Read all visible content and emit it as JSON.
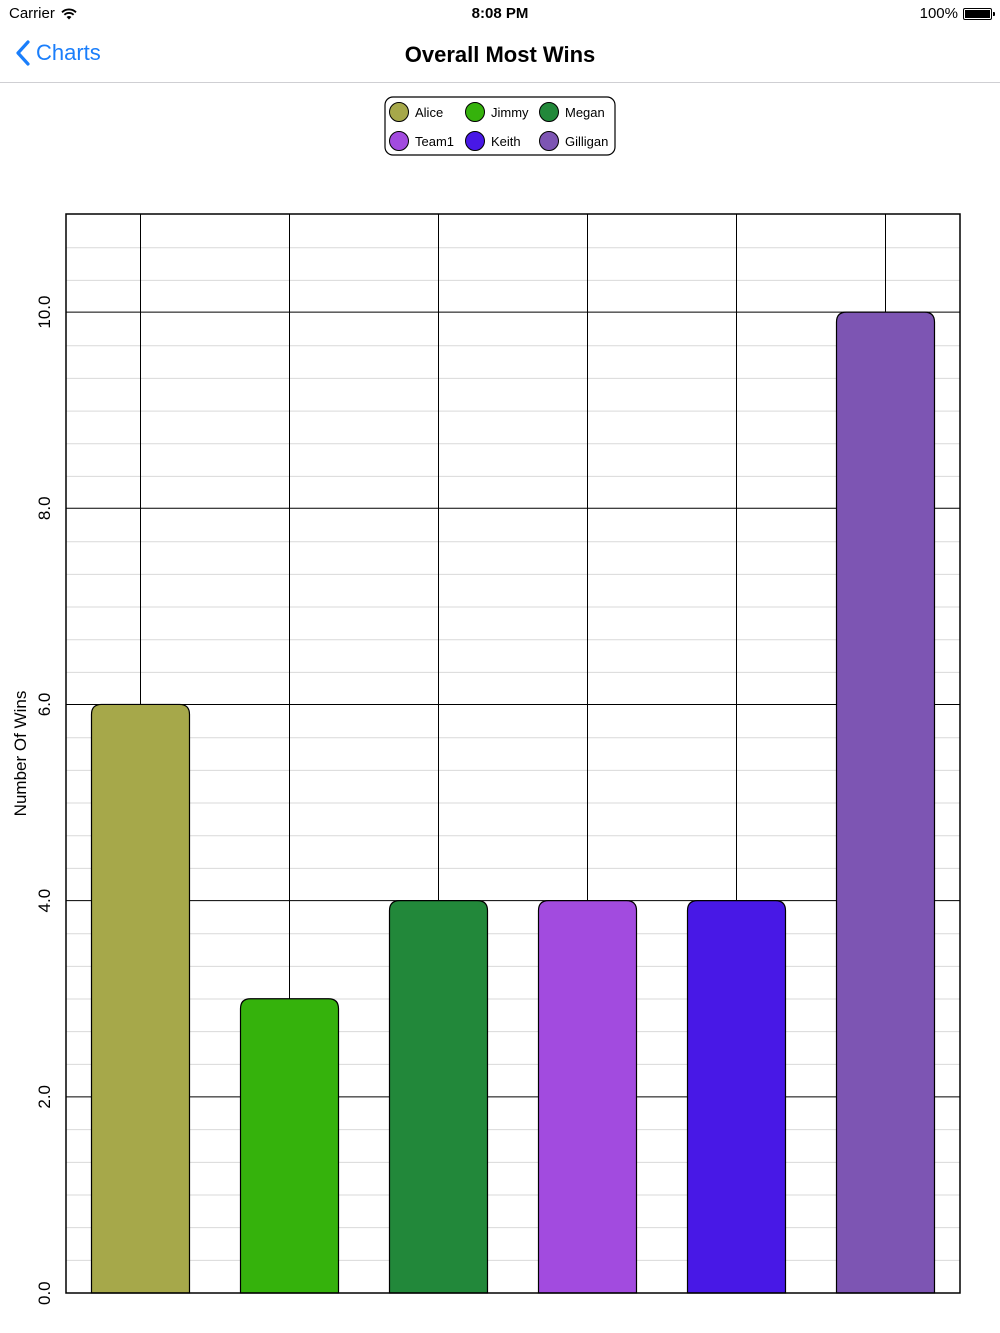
{
  "status_bar": {
    "carrier": "Carrier",
    "time": "8:08 PM",
    "battery": "100%",
    "battery_level": 1.0
  },
  "nav": {
    "back_label": "Charts",
    "title": "Overall Most Wins"
  },
  "chart_data": {
    "type": "bar",
    "categories": [
      "Alice",
      "Jimmy",
      "Megan",
      "Team1",
      "Keith",
      "Gilligan"
    ],
    "values": [
      6,
      3,
      4,
      4,
      4,
      10
    ],
    "colors": [
      "#a6a84a",
      "#35b20c",
      "#22883a",
      "#a24bdf",
      "#4818e6",
      "#7d55b3"
    ],
    "ylabel": "Number Of Wins",
    "xlabel": "",
    "ylim": [
      0,
      11
    ],
    "yticks": [
      0,
      2,
      4,
      6,
      8,
      10
    ],
    "ytick_labels": [
      "0.0",
      "2.0",
      "4.0",
      "6.0",
      "8.0",
      "10.0"
    ],
    "minor_grid_step": 0.333,
    "grid": true,
    "legend": {
      "position": "top-center",
      "columns": 3,
      "entries": [
        "Alice",
        "Jimmy",
        "Megan",
        "Team1",
        "Keith",
        "Gilligan"
      ]
    }
  }
}
